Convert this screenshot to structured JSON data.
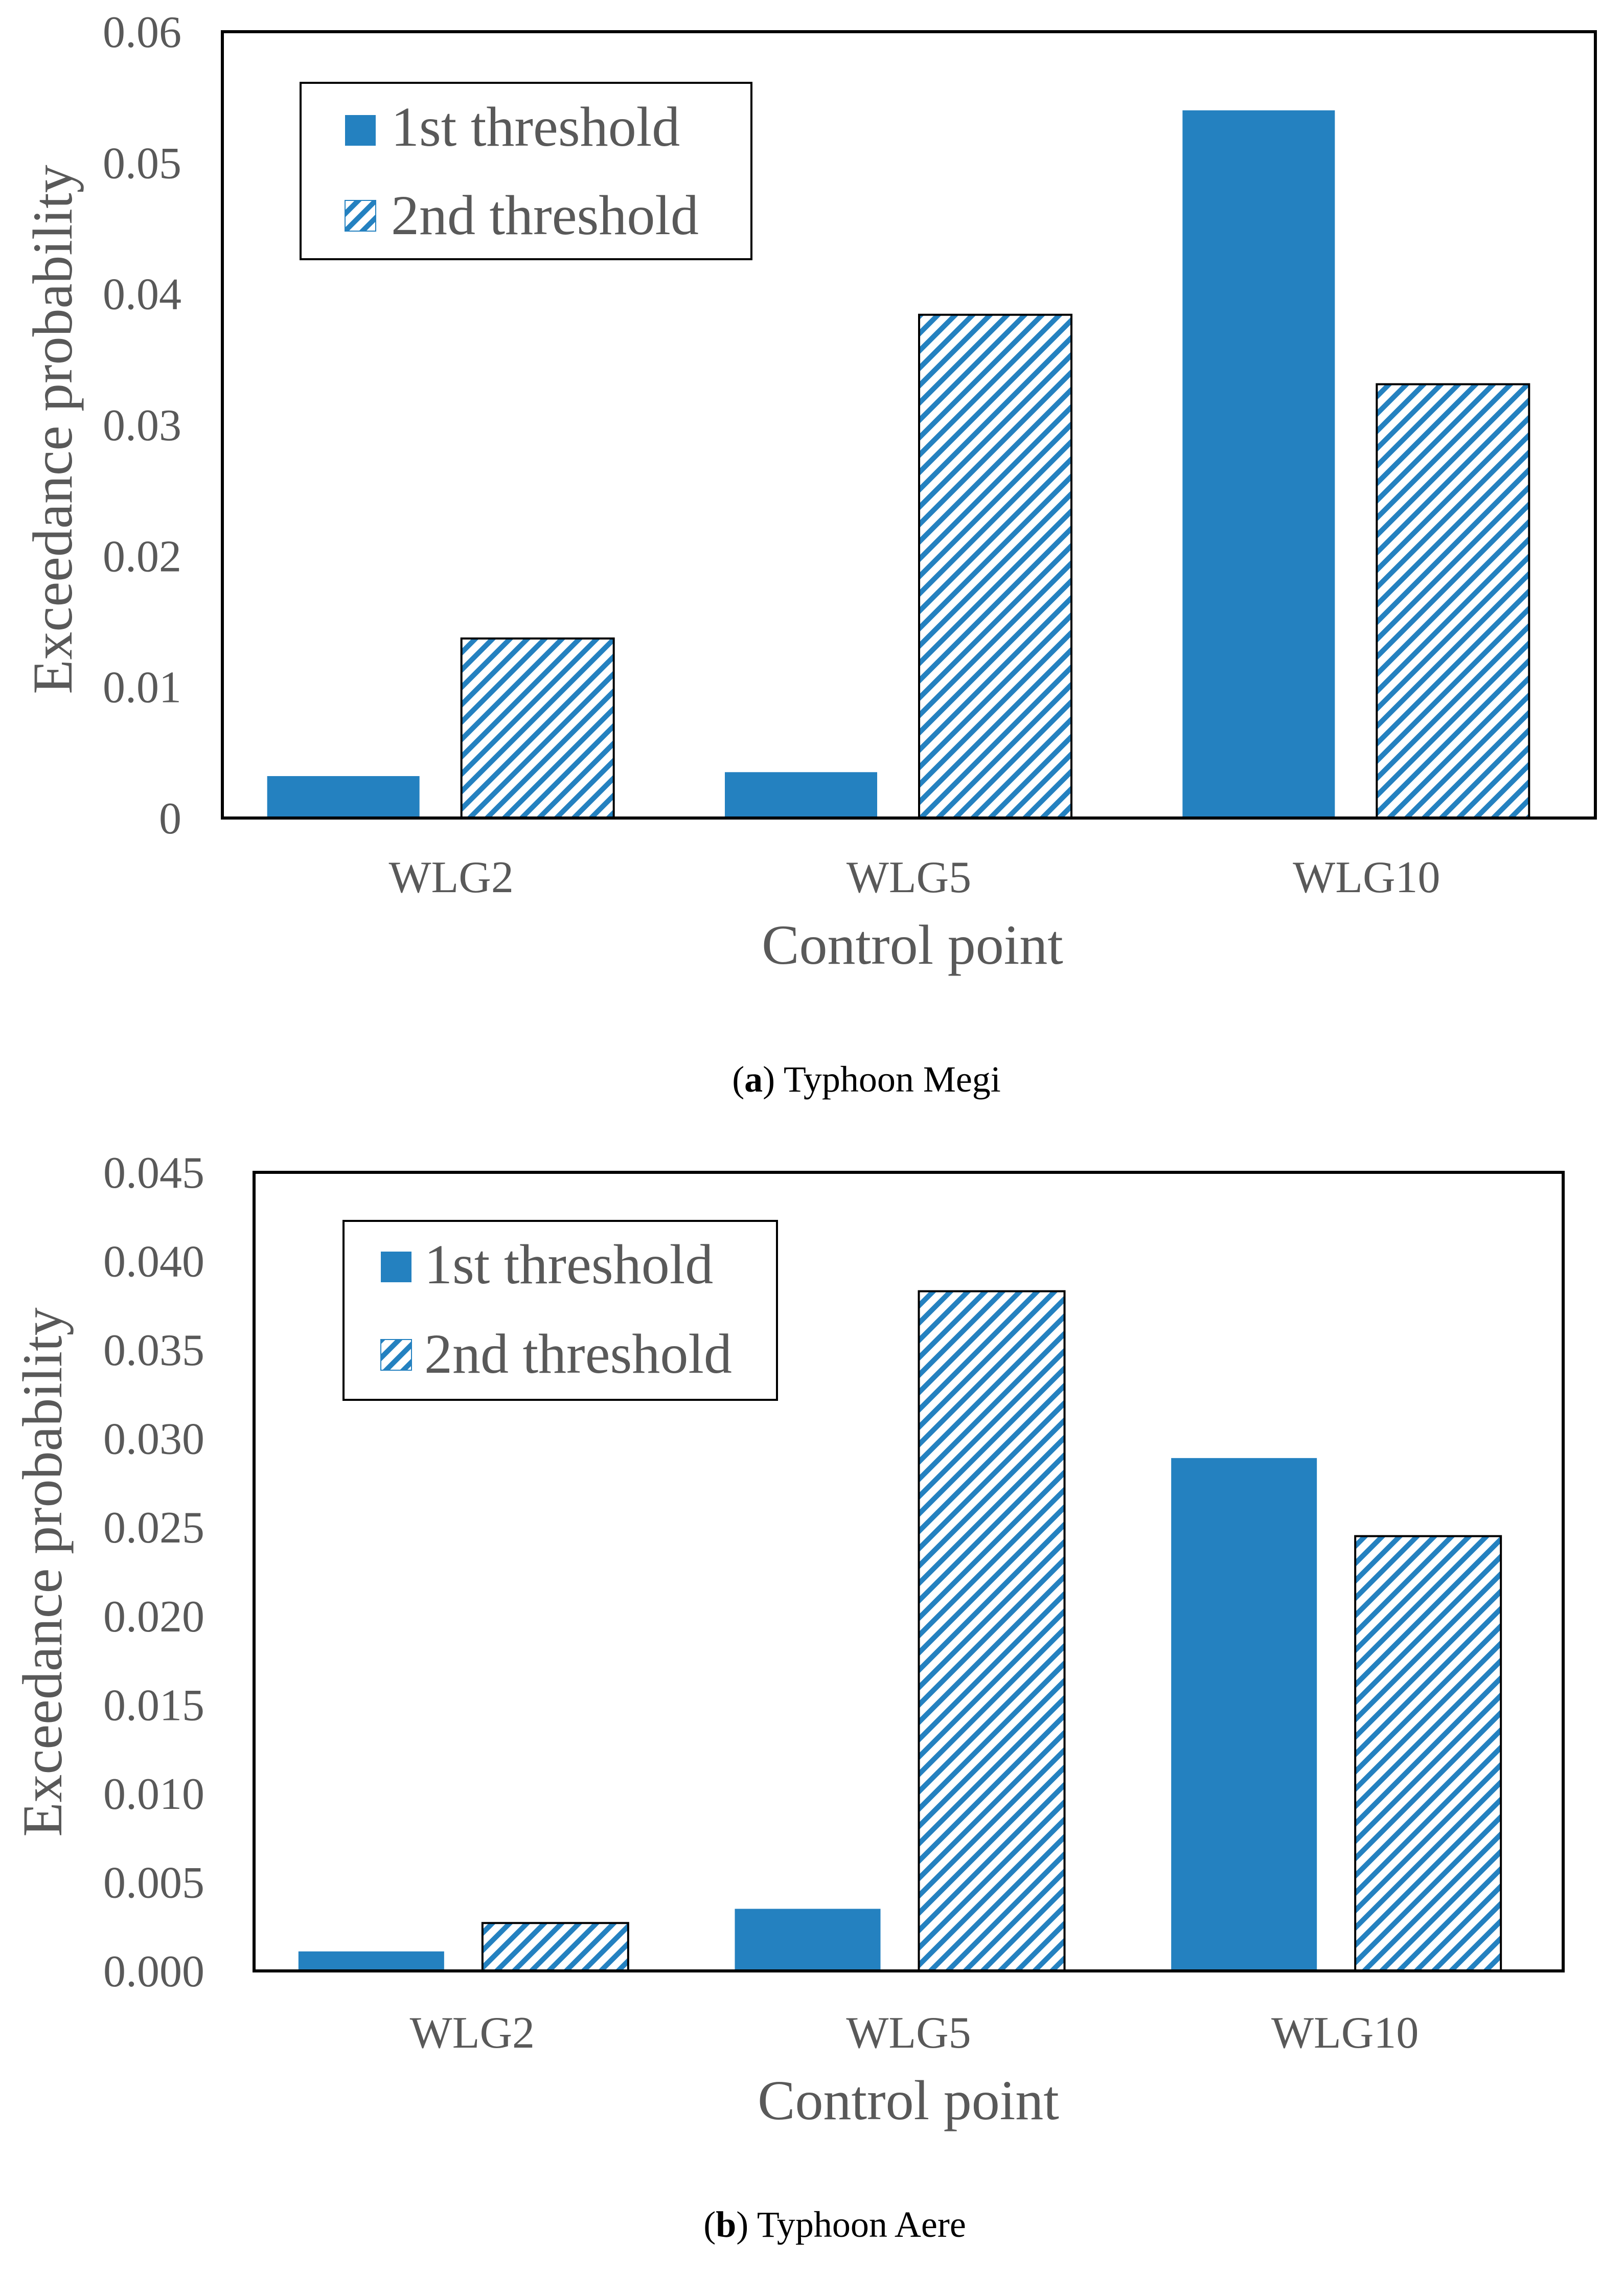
{
  "chart_data": [
    {
      "type": "bar",
      "panel": "a",
      "caption_letter": "a",
      "caption_text": "Typhoon Megi",
      "xlabel": "Control point",
      "ylabel": "Exceedance probability",
      "categories": [
        "WLG2",
        "WLG5",
        "WLG10"
      ],
      "ylim": [
        0,
        0.06
      ],
      "yticks": [
        "0",
        "0.01",
        "0.02",
        "0.03",
        "0.04",
        "0.05",
        "0.06"
      ],
      "grid": false,
      "legend_position": "top-left",
      "series": [
        {
          "name": "1st threshold",
          "style": "solid",
          "values": [
            0.0032,
            0.0035,
            0.054
          ]
        },
        {
          "name": "2nd threshold",
          "style": "hatched",
          "values": [
            0.0137,
            0.0384,
            0.0331
          ]
        }
      ]
    },
    {
      "type": "bar",
      "panel": "b",
      "caption_letter": "b",
      "caption_text": "Typhoon Aere",
      "xlabel": "Control point",
      "ylabel": "Exceedance probability",
      "categories": [
        "WLG2",
        "WLG5",
        "WLG10"
      ],
      "ylim": [
        0,
        0.045
      ],
      "yticks": [
        "0.000",
        "0.005",
        "0.010",
        "0.015",
        "0.020",
        "0.025",
        "0.030",
        "0.035",
        "0.040",
        "0.045"
      ],
      "grid": false,
      "legend_position": "top-left",
      "series": [
        {
          "name": "1st threshold",
          "style": "solid",
          "values": [
            0.0011,
            0.0035,
            0.0289
          ]
        },
        {
          "name": "2nd threshold",
          "style": "hatched",
          "values": [
            0.0027,
            0.0383,
            0.0245
          ]
        }
      ]
    }
  ],
  "colors": {
    "bar_fill": "#2481C0",
    "hatch_background": "#FFFFFF",
    "axis": "#000000",
    "text": "#595959",
    "caption": "#000000"
  }
}
